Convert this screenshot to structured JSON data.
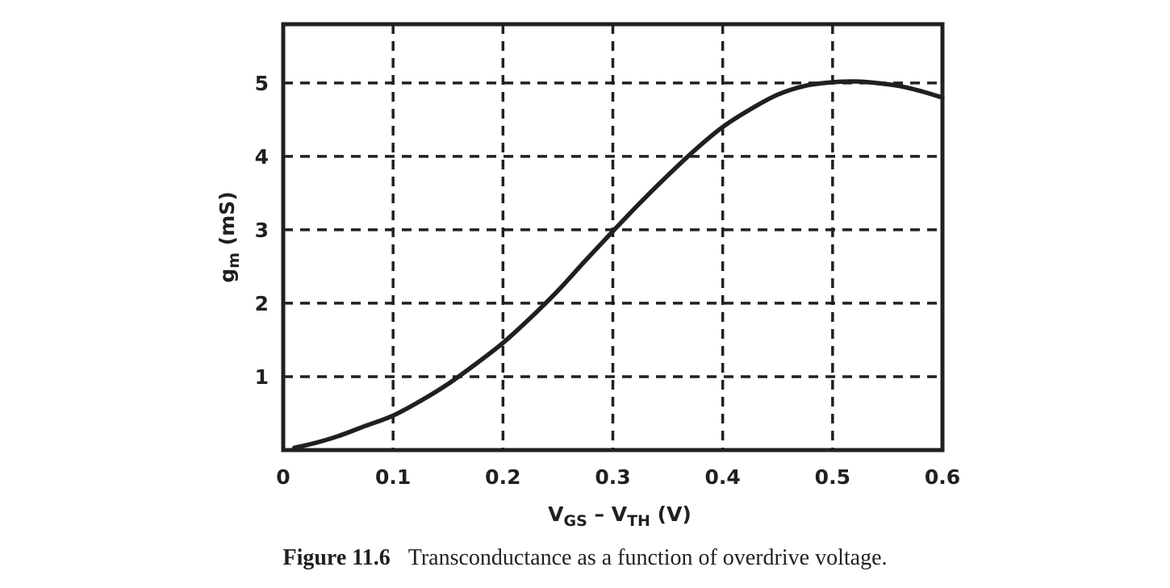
{
  "chart_data": {
    "type": "line",
    "xlabel": {
      "main": "V",
      "sub1": "GS",
      "mid": " – V",
      "sub2": "TH",
      "unit": " (V)"
    },
    "ylabel": {
      "main": "g",
      "sub": "m",
      "unit": " (mS)"
    },
    "xlim": [
      0,
      0.6
    ],
    "ylim": [
      0,
      5.8
    ],
    "x_ticks": [
      0,
      0.1,
      0.2,
      0.3,
      0.4,
      0.5,
      0.6
    ],
    "x_tick_labels": [
      "0",
      "0.1",
      "0.2",
      "0.3",
      "0.4",
      "0.5",
      "0.6"
    ],
    "y_ticks": [
      1,
      2,
      3,
      4,
      5
    ],
    "y_tick_labels": [
      "1",
      "2",
      "3",
      "4",
      "5"
    ],
    "grid": "dashed",
    "series": [
      {
        "x": [
          0.01,
          0.03,
          0.05,
          0.075,
          0.1,
          0.125,
          0.15,
          0.175,
          0.2,
          0.225,
          0.25,
          0.275,
          0.3,
          0.325,
          0.35,
          0.375,
          0.4,
          0.425,
          0.45,
          0.475,
          0.5,
          0.52,
          0.54,
          0.56,
          0.58,
          0.6
        ],
        "y": [
          0.03,
          0.1,
          0.19,
          0.33,
          0.47,
          0.67,
          0.9,
          1.17,
          1.46,
          1.8,
          2.17,
          2.58,
          2.98,
          3.37,
          3.74,
          4.09,
          4.4,
          4.64,
          4.84,
          4.96,
          5.01,
          5.02,
          5.0,
          4.96,
          4.89,
          4.8
        ]
      }
    ],
    "colors": {
      "line": "#231f20",
      "frame": "#231f20",
      "grid": "#231f20"
    }
  },
  "caption": {
    "figure_number": "Figure 11.6",
    "text": "Transconductance as a function of overdrive voltage."
  }
}
